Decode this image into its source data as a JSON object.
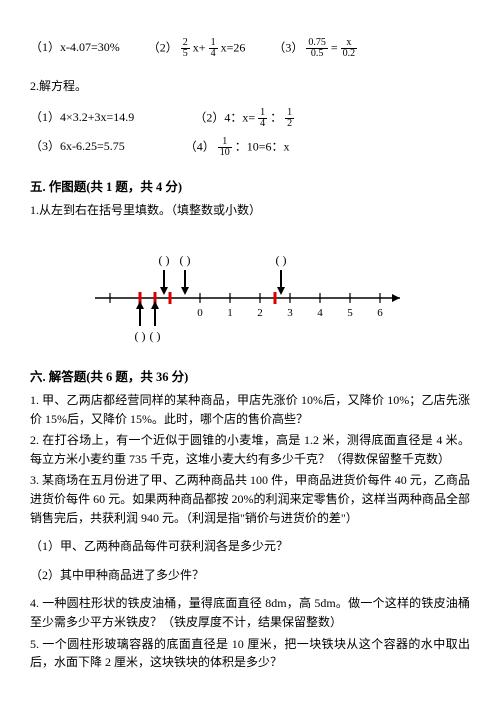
{
  "problems_1": {
    "a": "（1）x-4.07=30%",
    "b_pre": "（2）",
    "b_frac1_n": "2",
    "b_frac1_d": "5",
    "b_mid1": " x+ ",
    "b_frac2_n": "1",
    "b_frac2_d": "4",
    "b_post": " x=26",
    "c_pre": "（3）",
    "c_frac1_n": "0.75",
    "c_frac1_d": "0.5",
    "c_mid": " = ",
    "c_frac2_n": "x",
    "c_frac2_d": "0.2"
  },
  "solve_heading": "2.解方程。",
  "problems_2": {
    "a": "（1）4×3.2+3x=14.9",
    "b_pre": "（2）4：x= ",
    "b_f1n": "1",
    "b_f1d": "4",
    "b_mid": " ：",
    "b_f2n": "1",
    "b_f2d": "2",
    "c": "（3）6x-6.25=5.75",
    "d_pre": "（4）",
    "d_f1n": "1",
    "d_f1d": "10",
    "d_post": " ：10=6：x"
  },
  "sec5_title": "五. 作图题(共 1 题，共 4 分)",
  "sec5_q": "1.从左到右在括号里填数。（填整数或小数）",
  "numberline": {
    "ticks": [
      -3,
      -2,
      -1,
      0,
      1,
      2,
      3,
      4,
      5,
      6
    ],
    "labels": [
      "0",
      "1",
      "2",
      "3",
      "4",
      "5",
      "6"
    ],
    "label_start_index": 3,
    "red_marks_x": [
      -2,
      -1.5,
      -1,
      2.5
    ],
    "top_arrows_x": [
      -1.2,
      -0.5,
      2.7
    ],
    "bottom_arrows_x": [
      -2,
      -1.5
    ],
    "paren_top_x": [
      -1.2,
      -0.5,
      2.7
    ],
    "paren_bottom_x": [
      -2,
      -1.5
    ],
    "colors": {
      "line": "#000000",
      "red": "#d80000"
    }
  },
  "sec6_title": "六. 解答题(共 6 题，共 36 分)",
  "sec6": {
    "q1": "1. 甲、乙两店都经营同样的某种商品，甲店先涨价 10%后，又降价 10%；乙店先涨价 15%后，又降价 15%。此时，哪个店的售价高些？",
    "q2": "2. 在打谷场上，有一个近似于圆锥的小麦堆，高是 1.2 米，测得底面直径是 4 米。每立方米小麦约重 735 千克，这堆小麦大约有多少千克？（得数保留整千克数）",
    "q3": "3. 某商场在五月份进了甲、乙两种商品共 100 件，甲商品进货价每件 40 元，乙商品进货价每件 60 元。如果两种商品都按 20%的利润来定零售价，这样当两种商品全部销售完后，共获利润 940 元。（利润是指\"销价与进货价的差\"）",
    "q3a": "（1）甲、乙两种商品每件可获利润各是多少元？",
    "q3b": "（2）其中甲种商品进了多少件？",
    "q4": "4. 一种圆柱形状的铁皮油桶，量得底面直径 8dm，高 5dm。做一个这样的铁皮油桶至少需多少平方米铁皮？（铁皮厚度不计，结果保留整数）",
    "q5": "5. 一个圆柱形玻璃容器的底面直径是 10 厘米，把一块铁块从这个容器的水中取出后，水面下降 2 厘米，这块铁块的体积是多少？"
  }
}
